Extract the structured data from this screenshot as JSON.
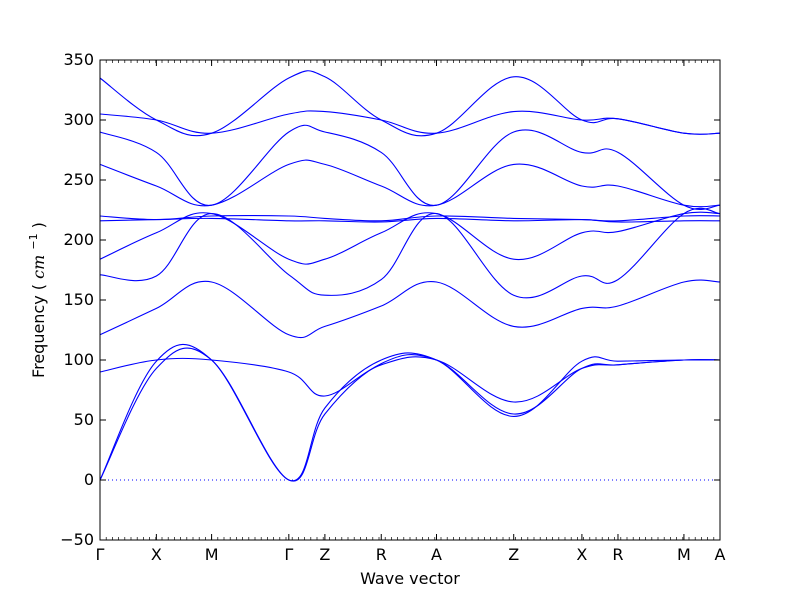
{
  "chart_data": {
    "type": "line",
    "title": "",
    "xlabel": "Wave vector",
    "ylabel": "Frequency",
    "ylabel_unit_prefix": "cm",
    "ylabel_unit_exponent": "−1",
    "ylim": [
      -50,
      350
    ],
    "y_ticks": [
      -50,
      0,
      50,
      100,
      150,
      200,
      250,
      300,
      350
    ],
    "xlim": [
      0,
      11.0
    ],
    "x_ticks": [
      {
        "x": 0.0,
        "label": "Γ"
      },
      {
        "x": 1.0,
        "label": "X"
      },
      {
        "x": 1.98,
        "label": "M"
      },
      {
        "x": 3.35,
        "label": "Γ"
      },
      {
        "x": 3.99,
        "label": "Z"
      },
      {
        "x": 4.99,
        "label": "R"
      },
      {
        "x": 5.97,
        "label": "A"
      },
      {
        "x": 7.34,
        "label": "Z"
      },
      {
        "x": 8.55,
        "label": "X"
      },
      {
        "x": 9.19,
        "label": "R"
      },
      {
        "x": 10.36,
        "label": "M"
      },
      {
        "x": 11.0,
        "label": "A"
      }
    ],
    "line_color": "#0000ff",
    "zero_line": {
      "y": 0,
      "style": "dotted",
      "color": "#0000ff"
    },
    "grid": false,
    "legend": "none",
    "series": [
      {
        "x": [
          0,
          1,
          1.98,
          3.35,
          3.99,
          4.99,
          5.97,
          7.34,
          8.55,
          9.19,
          10.36,
          11.0
        ],
        "y": [
          0,
          93,
          100,
          0,
          55,
          97,
          100,
          55,
          93,
          96,
          100,
          100
        ]
      },
      {
        "x": [
          0,
          1,
          1.98,
          3.35,
          3.99,
          4.99,
          5.97,
          7.34,
          8.55,
          9.19,
          10.36,
          11.0
        ],
        "y": [
          0,
          99,
          100,
          0,
          60,
          100,
          100,
          53,
          99,
          99,
          100,
          100
        ]
      },
      {
        "x": [
          0,
          1,
          1.98,
          3.35,
          3.99,
          4.99,
          5.97,
          7.34,
          8.55,
          9.19,
          10.36,
          11.0
        ],
        "y": [
          90,
          100,
          100,
          90,
          70,
          96,
          100,
          65,
          93,
          96,
          100,
          100
        ]
      },
      {
        "x": [
          0,
          1,
          1.98,
          3.35,
          3.99,
          4.99,
          5.97,
          7.34,
          8.55,
          9.19,
          10.36,
          11.0
        ],
        "y": [
          121,
          143,
          165,
          121,
          128,
          145,
          165,
          128,
          143,
          145,
          165,
          165
        ]
      },
      {
        "x": [
          0,
          1,
          1.98,
          3.35,
          3.99,
          4.99,
          5.97,
          7.34,
          8.55,
          9.19,
          10.36,
          11.0
        ],
        "y": [
          171,
          170,
          222,
          171,
          154,
          167,
          222,
          154,
          170,
          167,
          222,
          222
        ]
      },
      {
        "x": [
          0,
          1,
          1.98,
          3.35,
          3.99,
          4.99,
          5.97,
          7.34,
          8.55,
          9.19,
          10.36,
          11.0
        ],
        "y": [
          184,
          206,
          222,
          184,
          184,
          206,
          222,
          184,
          206,
          207,
          222,
          222
        ]
      },
      {
        "x": [
          0,
          1,
          1.98,
          3.35,
          3.99,
          4.99,
          5.97,
          7.34,
          8.55,
          9.19,
          10.36,
          11.0
        ],
        "y": [
          216,
          217,
          218,
          216,
          216,
          215,
          218,
          216,
          217,
          215,
          216,
          216
        ]
      },
      {
        "x": [
          0,
          1,
          1.98,
          3.35,
          3.99,
          4.99,
          5.97,
          7.34,
          8.55,
          9.19,
          10.36,
          11.0
        ],
        "y": [
          220,
          217,
          220,
          220,
          218,
          216,
          220,
          218,
          217,
          216,
          220,
          220
        ]
      },
      {
        "x": [
          0,
          1,
          1.98,
          3.35,
          3.99,
          4.99,
          5.97,
          7.34,
          8.55,
          9.19,
          10.36,
          11.0
        ],
        "y": [
          263,
          245,
          229,
          263,
          263,
          245,
          229,
          263,
          245,
          245,
          229,
          229
        ]
      },
      {
        "x": [
          0,
          1,
          1.98,
          3.35,
          3.99,
          4.99,
          5.97,
          7.34,
          8.55,
          9.19,
          10.36,
          11.0
        ],
        "y": [
          290,
          273,
          229,
          290,
          290,
          273,
          229,
          290,
          273,
          273,
          229,
          229
        ]
      },
      {
        "x": [
          0,
          1,
          1.98,
          3.35,
          3.99,
          4.99,
          5.97,
          7.34,
          8.55,
          9.19,
          10.36,
          11.0
        ],
        "y": [
          305,
          300,
          289,
          305,
          307,
          300,
          289,
          307,
          300,
          301,
          289,
          289
        ]
      },
      {
        "x": [
          0,
          1,
          1.98,
          3.35,
          3.99,
          4.99,
          5.97,
          7.34,
          8.55,
          9.19,
          10.36,
          11.0
        ],
        "y": [
          335,
          300,
          289,
          335,
          336,
          300,
          289,
          336,
          300,
          301,
          289,
          289
        ]
      }
    ]
  }
}
